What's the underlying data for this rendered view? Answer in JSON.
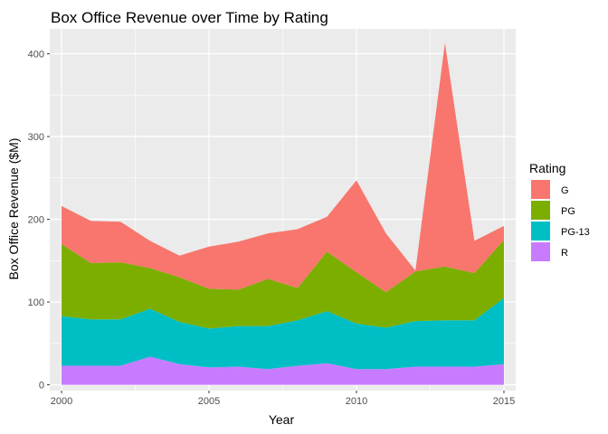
{
  "chart_data": {
    "type": "area",
    "stacked": true,
    "title": "Box Office Revenue over Time by Rating",
    "xlabel": "Year",
    "ylabel": "Box Office Revenue ($M)",
    "xlim": [
      1999.6,
      2015.4
    ],
    "ylim": [
      -7,
      430
    ],
    "x_ticks": [
      2000,
      2005,
      2010,
      2015
    ],
    "y_ticks": [
      0,
      100,
      200,
      300,
      400
    ],
    "grid": true,
    "legend": {
      "title": "Rating",
      "position": "right"
    },
    "x": [
      2000,
      2001,
      2002,
      2003,
      2004,
      2005,
      2006,
      2007,
      2008,
      2009,
      2010,
      2011,
      2012,
      2013,
      2014,
      2015
    ],
    "series": [
      {
        "name": "G",
        "color": "#F8766D",
        "values": [
          46,
          51,
          49,
          33,
          26,
          51,
          58,
          55,
          71,
          42,
          111,
          71,
          1,
          270,
          39,
          17
        ]
      },
      {
        "name": "PG",
        "color": "#7CAE00",
        "values": [
          87,
          68,
          69,
          49,
          54,
          48,
          44,
          57,
          39,
          72,
          62,
          43,
          60,
          65,
          57,
          70
        ]
      },
      {
        "name": "PG-13",
        "color": "#00BFC4",
        "values": [
          60,
          56,
          56,
          58,
          51,
          47,
          49,
          52,
          55,
          63,
          55,
          50,
          55,
          56,
          56,
          80
        ]
      },
      {
        "name": "R",
        "color": "#C77CFF",
        "values": [
          23,
          23,
          23,
          34,
          25,
          21,
          22,
          19,
          23,
          26,
          19,
          19,
          22,
          22,
          22,
          25
        ]
      }
    ]
  }
}
